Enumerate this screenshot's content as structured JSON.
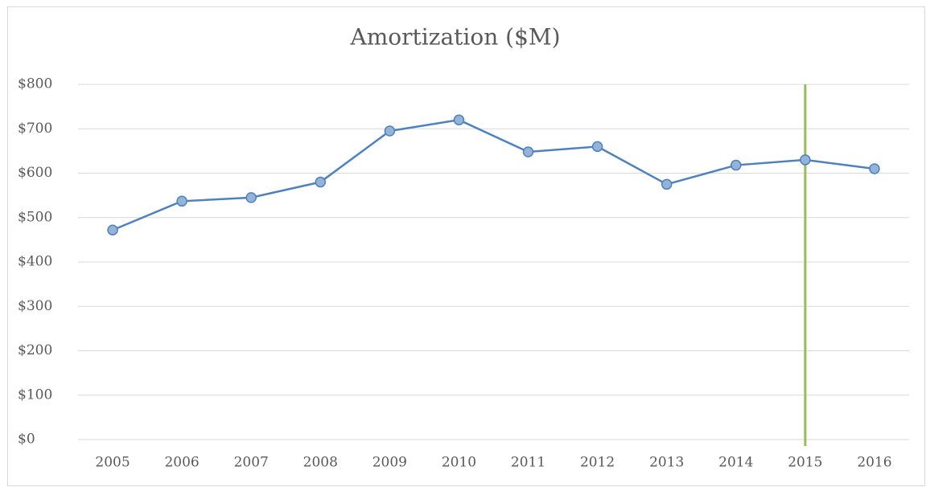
{
  "chart_data": {
    "type": "line",
    "title": "Amortization ($M)",
    "categories": [
      "2005",
      "2006",
      "2007",
      "2008",
      "2009",
      "2010",
      "2011",
      "2012",
      "2013",
      "2014",
      "2015",
      "2016"
    ],
    "series": [
      {
        "name": "Amortization",
        "color": "#4f81bd",
        "marker_fill": "#95b3d7",
        "values": [
          472,
          537,
          545,
          580,
          695,
          720,
          648,
          660,
          575,
          618,
          630,
          610
        ]
      }
    ],
    "ylim": [
      0,
      800
    ],
    "yticks": [
      {
        "value": 0,
        "label": "$0"
      },
      {
        "value": 100,
        "label": "$100"
      },
      {
        "value": 200,
        "label": "$200"
      },
      {
        "value": 300,
        "label": "$300"
      },
      {
        "value": 400,
        "label": "$400"
      },
      {
        "value": 500,
        "label": "$500"
      },
      {
        "value": 600,
        "label": "$600"
      },
      {
        "value": 700,
        "label": "$700"
      },
      {
        "value": 800,
        "label": "$800"
      }
    ],
    "grid": true,
    "legend": false,
    "vline": {
      "category": "2015",
      "color": "#9bbb59"
    }
  }
}
